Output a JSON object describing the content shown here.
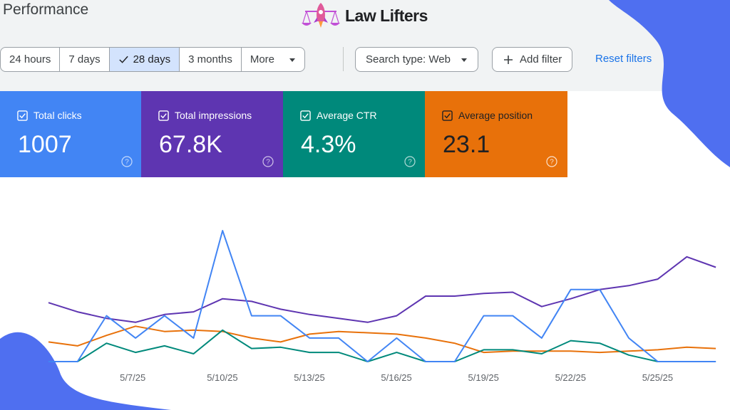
{
  "header": {
    "title": "Performance"
  },
  "logo": {
    "text": "Law Lifters"
  },
  "date_range": {
    "options": [
      "24 hours",
      "7 days",
      "28 days",
      "3 months"
    ],
    "selected": "28 days",
    "more_label": "More"
  },
  "filters": {
    "search_type_label": "Search type: Web",
    "add_filter_label": "Add filter",
    "reset_label": "Reset filters"
  },
  "metrics": [
    {
      "label": "Total clicks",
      "value": "1007",
      "color": "#4285f4"
    },
    {
      "label": "Total impressions",
      "value": "67.8K",
      "color": "#5e35b1"
    },
    {
      "label": "Average CTR",
      "value": "4.3%",
      "color": "#00897b"
    },
    {
      "label": "Average position",
      "value": "23.1",
      "color": "#e8710a"
    }
  ],
  "chart_data": {
    "type": "line",
    "x": [
      "5/4/25",
      "5/5/25",
      "5/6/25",
      "5/7/25",
      "5/8/25",
      "5/9/25",
      "5/10/25",
      "5/11/25",
      "5/12/25",
      "5/13/25",
      "5/14/25",
      "5/15/25",
      "5/16/25",
      "5/17/25",
      "5/18/25",
      "5/19/25",
      "5/20/25",
      "5/21/25",
      "5/22/25",
      "5/23/25",
      "5/24/25",
      "5/25/25",
      "5/26/25",
      "5/27/25"
    ],
    "tick_labels": [
      "5/7/25",
      "5/10/25",
      "5/13/25",
      "5/16/25",
      "5/19/25",
      "5/22/25",
      "5/25/25"
    ],
    "grid": false,
    "legend": "none",
    "ylim": [
      0,
      100
    ],
    "series": [
      {
        "name": "Total clicks",
        "color": "#4285f4",
        "values": [
          0,
          0,
          35,
          18,
          35,
          18,
          100,
          35,
          35,
          18,
          18,
          0,
          18,
          0,
          0,
          35,
          35,
          18,
          55,
          55,
          18,
          0,
          0,
          0
        ]
      },
      {
        "name": "Total impressions",
        "color": "#5e35b1",
        "values": [
          45,
          38,
          33,
          30,
          36,
          38,
          48,
          46,
          40,
          36,
          33,
          30,
          35,
          50,
          50,
          52,
          53,
          42,
          48,
          55,
          58,
          63,
          80,
          72
        ]
      },
      {
        "name": "Average CTR",
        "color": "#00897b",
        "values": [
          0,
          0,
          14,
          7,
          12,
          6,
          24,
          10,
          11,
          7,
          7,
          0,
          7,
          0,
          0,
          9,
          9,
          6,
          16,
          14,
          5,
          0,
          0,
          0
        ]
      },
      {
        "name": "Average position",
        "color": "#e8710a",
        "values": [
          15,
          12,
          20,
          27,
          23,
          24,
          23,
          18,
          15,
          21,
          23,
          22,
          21,
          18,
          14,
          7,
          8,
          8,
          8,
          7,
          8,
          9,
          11,
          10
        ]
      }
    ]
  }
}
